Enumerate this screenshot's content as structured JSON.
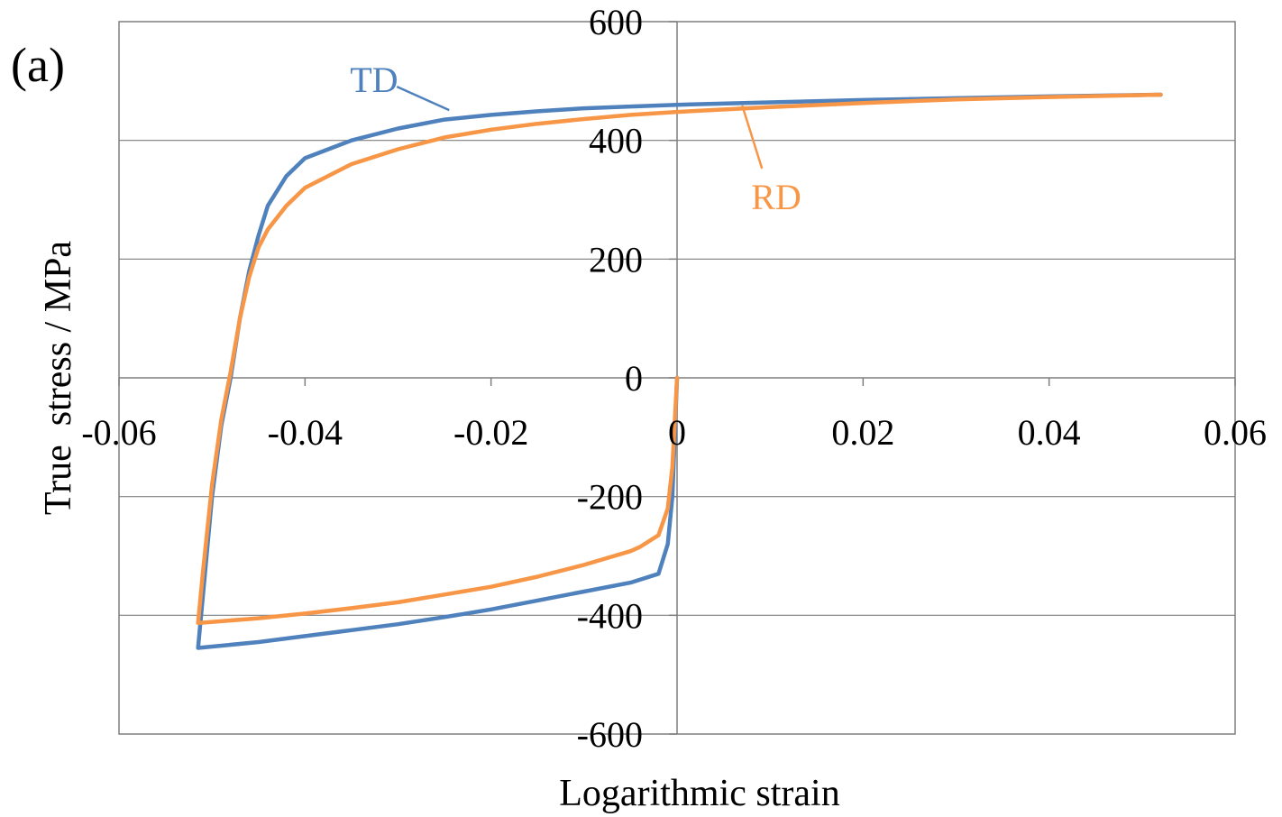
{
  "panel_label": "(a)",
  "chart_data": {
    "type": "line",
    "title": "",
    "xlabel": "Logarithmic strain",
    "ylabel": "True  stress / MPa",
    "xlim": [
      -0.06,
      0.06
    ],
    "ylim": [
      -600,
      600
    ],
    "x_ticks": [
      -0.06,
      -0.04,
      -0.02,
      0,
      0.02,
      0.04,
      0.06
    ],
    "x_tick_labels": [
      "-0.06",
      "-0.04",
      "-0.02",
      "0",
      "0.02",
      "0.04",
      "0.06"
    ],
    "y_ticks": [
      -600,
      -400,
      -200,
      0,
      200,
      400,
      600
    ],
    "y_tick_labels": [
      "-600",
      "-400",
      "-200",
      "0",
      "200",
      "400",
      "600"
    ],
    "grid": "horizontal",
    "legend": "inline labels",
    "series": [
      {
        "name": "TD",
        "color": "#4f81bd",
        "points": [
          [
            0.0,
            0
          ],
          [
            -0.0005,
            -200
          ],
          [
            -0.001,
            -280
          ],
          [
            -0.002,
            -330
          ],
          [
            -0.005,
            -345
          ],
          [
            -0.01,
            -360
          ],
          [
            -0.015,
            -375
          ],
          [
            -0.02,
            -390
          ],
          [
            -0.025,
            -403
          ],
          [
            -0.03,
            -415
          ],
          [
            -0.035,
            -425
          ],
          [
            -0.04,
            -435
          ],
          [
            -0.045,
            -445
          ],
          [
            -0.0515,
            -455
          ],
          [
            -0.051,
            -370
          ],
          [
            -0.05,
            -200
          ],
          [
            -0.049,
            -80
          ],
          [
            -0.048,
            0
          ],
          [
            -0.047,
            100
          ],
          [
            -0.046,
            180
          ],
          [
            -0.045,
            240
          ],
          [
            -0.044,
            290
          ],
          [
            -0.042,
            340
          ],
          [
            -0.04,
            370
          ],
          [
            -0.035,
            400
          ],
          [
            -0.03,
            420
          ],
          [
            -0.025,
            435
          ],
          [
            -0.02,
            443
          ],
          [
            -0.015,
            449
          ],
          [
            -0.01,
            454
          ],
          [
            -0.005,
            457
          ],
          [
            0.0,
            460
          ],
          [
            0.01,
            464
          ],
          [
            0.02,
            468
          ],
          [
            0.03,
            471
          ],
          [
            0.04,
            474
          ],
          [
            0.052,
            477
          ]
        ]
      },
      {
        "name": "RD",
        "color": "#f79646",
        "points": [
          [
            0.0,
            0
          ],
          [
            -0.0005,
            -150
          ],
          [
            -0.001,
            -220
          ],
          [
            -0.002,
            -265
          ],
          [
            -0.004,
            -285
          ],
          [
            -0.005,
            -292
          ],
          [
            -0.01,
            -315
          ],
          [
            -0.015,
            -335
          ],
          [
            -0.02,
            -352
          ],
          [
            -0.025,
            -365
          ],
          [
            -0.03,
            -378
          ],
          [
            -0.035,
            -388
          ],
          [
            -0.04,
            -397
          ],
          [
            -0.045,
            -405
          ],
          [
            -0.0515,
            -413
          ],
          [
            -0.051,
            -330
          ],
          [
            -0.05,
            -180
          ],
          [
            -0.049,
            -70
          ],
          [
            -0.048,
            10
          ],
          [
            -0.047,
            100
          ],
          [
            -0.046,
            170
          ],
          [
            -0.045,
            220
          ],
          [
            -0.044,
            250
          ],
          [
            -0.042,
            290
          ],
          [
            -0.04,
            320
          ],
          [
            -0.035,
            360
          ],
          [
            -0.03,
            385
          ],
          [
            -0.025,
            405
          ],
          [
            -0.02,
            418
          ],
          [
            -0.015,
            428
          ],
          [
            -0.01,
            436
          ],
          [
            -0.005,
            443
          ],
          [
            0.0,
            448
          ],
          [
            0.01,
            456
          ],
          [
            0.02,
            463
          ],
          [
            0.03,
            469
          ],
          [
            0.04,
            473
          ],
          [
            0.052,
            477
          ]
        ]
      }
    ],
    "annotations": [
      {
        "text": "TD",
        "color": "#4f81bd",
        "anchor": [
          -0.0245,
          451
        ]
      },
      {
        "text": "RD",
        "color": "#f79646",
        "anchor": [
          0.007,
          459
        ]
      }
    ]
  }
}
